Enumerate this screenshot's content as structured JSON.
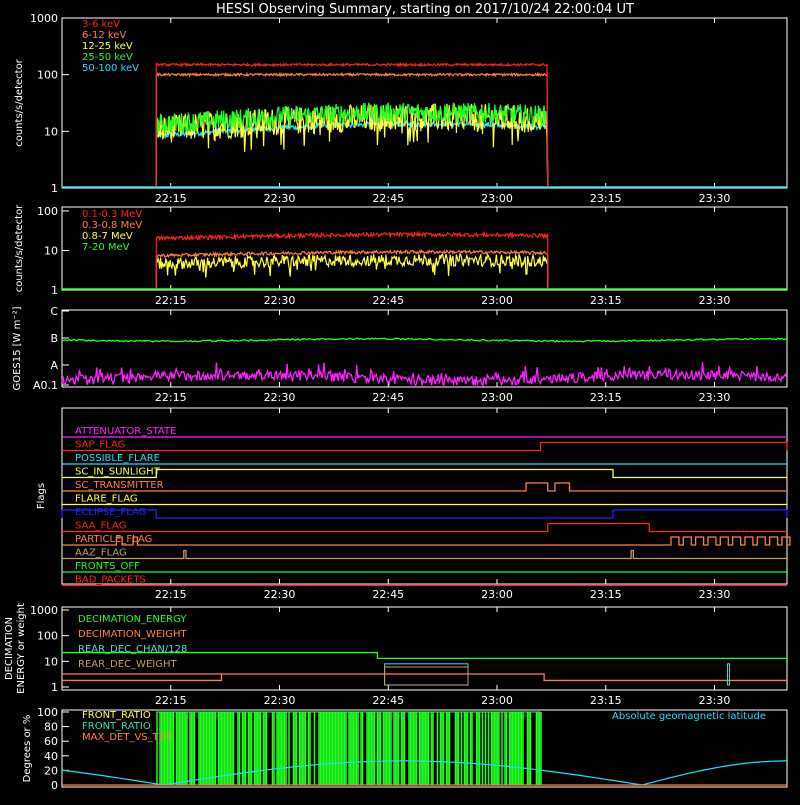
{
  "title": "HESSI Observing Summary, starting on 2017/10/24 22:00:04 UT",
  "time_ticks": [
    "22:15",
    "22:30",
    "22:45",
    "23:00",
    "23:15",
    "23:30"
  ],
  "colors": {
    "red": "#ff2020",
    "orange": "#ff8040",
    "yellow": "#ffff40",
    "green": "#20ff20",
    "cyan": "#20e0ff",
    "magenta": "#ff20ff",
    "blue": "#2020ff",
    "olive": "#c0a060",
    "white": "#ffffff",
    "lightcyan": "#40e0e0",
    "bluegreen": "#2fe0b0"
  },
  "chart_data": [
    {
      "id": "panel1",
      "type": "line",
      "ylabel": "counts/s/detector",
      "yscale": "log",
      "yticks": [
        "1",
        "10",
        "100",
        "1000"
      ],
      "xlim": [
        "22:00:04",
        "23:40"
      ],
      "series": [
        {
          "name": "3-6 keV",
          "color": "red",
          "start": "22:13",
          "end": "23:07",
          "level": 150,
          "noise": 0.02
        },
        {
          "name": "6-12 keV",
          "color": "orange",
          "start": "22:13",
          "end": "23:07",
          "level": 100,
          "noise": 0.02
        },
        {
          "name": "12-25 keV",
          "color": "yellow",
          "start": "22:13",
          "end": "23:07",
          "level": 13,
          "noise": 0.25
        },
        {
          "name": "25-50 keV",
          "color": "green",
          "start": "22:13",
          "end": "23:07",
          "level": 16,
          "noise": 0.18
        },
        {
          "name": "50-100 keV",
          "color": "cyan",
          "start": "22:13",
          "end": "23:07",
          "level": 10,
          "noise": 0.05
        }
      ]
    },
    {
      "id": "panel2",
      "type": "line",
      "ylabel": "counts/s/detector",
      "yscale": "log",
      "yticks": [
        "1",
        "10",
        "100"
      ],
      "series": [
        {
          "name": "0.1-0.3 MeV",
          "color": "red",
          "start": "22:13",
          "end": "23:07",
          "level": 22,
          "noise": 0.05
        },
        {
          "name": "0.3-0.8 MeV",
          "color": "orange",
          "start": "22:13",
          "end": "23:07",
          "level": 8,
          "noise": 0.04
        },
        {
          "name": "0.8-7 MeV",
          "color": "yellow",
          "start": "22:13",
          "end": "23:07",
          "level": 5,
          "noise": 0.15
        },
        {
          "name": "7-20 MeV",
          "color": "green",
          "start": "22:00",
          "end": "23:40",
          "level": 1,
          "noise": 0
        }
      ]
    },
    {
      "id": "panel3",
      "type": "line",
      "ylabel": "GOES15 [W m⁻²]",
      "yticks": [
        "A0.1",
        "A",
        "B",
        "C"
      ],
      "series": [
        {
          "color": "green",
          "level": 5.5
        },
        {
          "color": "magenta",
          "level": 0.45,
          "noise": 0.7
        }
      ]
    },
    {
      "id": "panel4",
      "type": "line",
      "ylabel": "Flags",
      "flags": [
        {
          "name": "ATTENUATOR_STATE",
          "color": "magenta"
        },
        {
          "name": "SAP_FLAG",
          "color": "red",
          "on": [
            [
              "23:06",
              "23:40"
            ]
          ]
        },
        {
          "name": "POSSIBLE_FLARE",
          "color": "cyan"
        },
        {
          "name": "SC_IN_SUNLIGHT",
          "color": "yellow",
          "on": [
            [
              "22:13",
              "23:16"
            ]
          ]
        },
        {
          "name": "SC_TRANSMITTER",
          "color": "orange",
          "on": [
            [
              "23:04",
              "23:07"
            ],
            [
              "23:08",
              "23:10"
            ]
          ]
        },
        {
          "name": "FLARE_FLAG",
          "color": "yellow"
        },
        {
          "name": "ECLIPSE_FLAG",
          "color": "blue",
          "on": [
            [
              "22:00",
              "22:13"
            ],
            [
              "23:16",
              "23:40"
            ]
          ]
        },
        {
          "name": "SAA_FLAG",
          "color": "red",
          "on": [
            [
              "23:07",
              "23:21"
            ]
          ]
        },
        {
          "name": "PARTICLE_FLAG",
          "color": "orange"
        },
        {
          "name": "AAZ_FLAG",
          "color": "olive"
        },
        {
          "name": "FRONTS_OFF",
          "color": "green"
        },
        {
          "name": "BAD_PACKETS",
          "color": "red"
        }
      ]
    },
    {
      "id": "panel5",
      "type": "line",
      "ylabel": "DECIMATION ENERGY or weight",
      "yscale": "log",
      "yticks": [
        "1",
        "10",
        "100",
        "1000"
      ],
      "series": [
        {
          "name": "DECIMATION_ENERGY",
          "color": "green",
          "value": 20
        },
        {
          "name": "DECIMATION_WEIGHT",
          "color": "orange",
          "value": 3
        },
        {
          "name": "REAR_DEC_CHAN/128",
          "color": "lightcyan",
          "value": 8
        },
        {
          "name": "REAR_DEC_WEIGHT",
          "color": "olive",
          "value": 6
        }
      ]
    },
    {
      "id": "panel6",
      "type": "bar",
      "ylabel": "Degrees or %",
      "yticks": [
        "0",
        "20",
        "40",
        "60",
        "80",
        "100"
      ],
      "series": [
        {
          "name": "FRONT_RATIO",
          "color": "yellow"
        },
        {
          "name": "FRONT_RATIO",
          "color": "bluegreen"
        },
        {
          "name": "MAX_DET_VS_TOT",
          "color": "orange"
        },
        {
          "name": "Absolute geomagnetic latitude",
          "color": "cyan",
          "min": 0,
          "max": 35
        }
      ]
    }
  ]
}
